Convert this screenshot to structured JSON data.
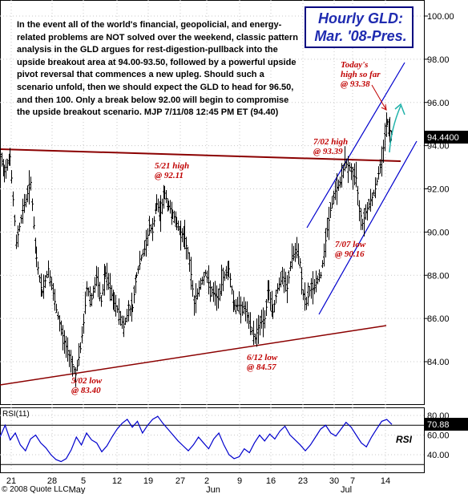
{
  "title": {
    "line1": "Hourly GLD:",
    "line2": "Mar. '08-Pres."
  },
  "commentary": "In the event all of the world's financial, geopolicial, and energy-related problems are NOT solved over the weekend, classic pattern analysis in the GLD argues for rest-digestion-pullback into the upside breakout area at 94.00-93.50, followed by a powerful upside pivot reversal that commences a new upleg. Should such a scenario unfold, then we should expect the GLD to head for 96.50, and then 100.  Only a break below 92.00 will begin to compromise the upside breakout scenario.  MJP  7/11/08  12:45 PM ET  (94.40)",
  "annotations": {
    "may21": {
      "line1": "5/21 high",
      "line2": "@ 92.11"
    },
    "may02": {
      "line1": "5/02 low",
      "line2": "@ 83.40"
    },
    "jun12": {
      "line1": "6/12 low",
      "line2": "@ 84.57"
    },
    "jul02": {
      "line1": "7/02 high",
      "line2": "@ 93.39"
    },
    "jul07": {
      "line1": "7/07 low",
      "line2": "@ 90.16"
    },
    "today": {
      "line1": "Today's",
      "line2": "high so far",
      "line3": "@ 93.38"
    }
  },
  "copyright": "© 2008 Quote LLC",
  "rsi_label": "RSI(11)",
  "rsi_side_label": "RSI",
  "last_price_tag": "94.4400",
  "rsi_value_tag": "70.88",
  "colors": {
    "price": "#000000",
    "trendline": "#8b0000",
    "channel": "#0000cd",
    "arrow_red": "#c00000",
    "arrow_teal": "#20b2aa",
    "tag_bg": "#000000",
    "rsi_line": "#0000cd"
  },
  "chart_data": [
    {
      "type": "ohlc",
      "title": "Hourly GLD: Mar. '08-Pres.",
      "xlabel": "",
      "ylabel": "",
      "x_ticks": [
        "21",
        "28",
        "5",
        "12",
        "19",
        "27",
        "2",
        "9",
        "16",
        "23",
        "30",
        "7",
        "14"
      ],
      "x_month_labels": [
        "May",
        "Jun",
        "Jul"
      ],
      "y_ticks": [
        84,
        86,
        88,
        90,
        92,
        94,
        96,
        98,
        100
      ],
      "ylim": [
        82.3,
        100.6
      ],
      "last_price": 94.44,
      "key_points": [
        {
          "date": "5/02",
          "label": "low",
          "value": 83.4
        },
        {
          "date": "5/21",
          "label": "high",
          "value": 92.11
        },
        {
          "date": "6/12",
          "label": "low",
          "value": 84.57
        },
        {
          "date": "7/02",
          "label": "high",
          "value": 93.39
        },
        {
          "date": "7/07",
          "label": "low",
          "value": 90.16
        },
        {
          "date": "Today",
          "label": "high so far",
          "value": 93.38
        }
      ],
      "path": [
        [
          0,
          93.6
        ],
        [
          5,
          92.8
        ],
        [
          12,
          93.5
        ],
        [
          20,
          89.5
        ],
        [
          28,
          91.0
        ],
        [
          38,
          92.3
        ],
        [
          45,
          88.8
        ],
        [
          52,
          87.2
        ],
        [
          60,
          88.3
        ],
        [
          70,
          86.4
        ],
        [
          80,
          84.9
        ],
        [
          88,
          84.1
        ],
        [
          94,
          83.4
        ],
        [
          100,
          84.6
        ],
        [
          104,
          85.8
        ],
        [
          108,
          87.4
        ],
        [
          114,
          86.9
        ],
        [
          120,
          87.9
        ],
        [
          126,
          86.8
        ],
        [
          131,
          88.1
        ],
        [
          137,
          87.4
        ],
        [
          142,
          86.7
        ],
        [
          148,
          86.3
        ],
        [
          154,
          85.6
        ],
        [
          160,
          86.4
        ],
        [
          165,
          86.5
        ],
        [
          170,
          88.0
        ],
        [
          176,
          88.8
        ],
        [
          182,
          89.4
        ],
        [
          186,
          90.3
        ],
        [
          190,
          90.0
        ],
        [
          195,
          91.3
        ],
        [
          200,
          90.9
        ],
        [
          205,
          91.8
        ],
        [
          210,
          91.2
        ],
        [
          215,
          90.9
        ],
        [
          220,
          90.4
        ],
        [
          225,
          90.0
        ],
        [
          230,
          89.7
        ],
        [
          236,
          88.7
        ],
        [
          242,
          86.7
        ],
        [
          250,
          87.6
        ],
        [
          256,
          88.1
        ],
        [
          264,
          87.2
        ],
        [
          272,
          86.9
        ],
        [
          278,
          87.9
        ],
        [
          285,
          88.3
        ],
        [
          292,
          86.6
        ],
        [
          300,
          86.6
        ],
        [
          306,
          86.4
        ],
        [
          312,
          85.6
        ],
        [
          318,
          85.1
        ],
        [
          324,
          85.8
        ],
        [
          330,
          86.0
        ],
        [
          335,
          87.3
        ],
        [
          340,
          86.3
        ],
        [
          346,
          87.4
        ],
        [
          352,
          87.9
        ],
        [
          358,
          87.4
        ],
        [
          364,
          88.9
        ],
        [
          370,
          89.1
        ],
        [
          374,
          88.6
        ],
        [
          378,
          87.1
        ],
        [
          382,
          86.7
        ],
        [
          386,
          87.3
        ],
        [
          390,
          87.4
        ],
        [
          396,
          87.8
        ],
        [
          400,
          88.0
        ],
        [
          404,
          89.1
        ],
        [
          408,
          90.1
        ],
        [
          412,
          91.0
        ],
        [
          418,
          91.9
        ],
        [
          424,
          92.3
        ],
        [
          430,
          93.2
        ],
        [
          436,
          93.0
        ],
        [
          440,
          92.6
        ],
        [
          444,
          92.5
        ],
        [
          448,
          91.1
        ],
        [
          452,
          90.4
        ],
        [
          456,
          90.9
        ],
        [
          460,
          91.3
        ],
        [
          464,
          91.6
        ],
        [
          468,
          92.0
        ],
        [
          472,
          92.7
        ],
        [
          476,
          93.3
        ],
        [
          480,
          94.5
        ],
        [
          483,
          95.1
        ],
        [
          486,
          94.7
        ],
        [
          489,
          94.44
        ]
      ],
      "series": [
        {
          "name": "GLD",
          "note": "hourly OHLC bars traced by path (x index, close)"
        }
      ],
      "overlays": [
        "horizontal resistance line ~94.0 to 93.3",
        "support trendline 83.3 to 85.7",
        "rising channel from 7/07 low"
      ]
    },
    {
      "type": "line",
      "title": "RSI(11)",
      "y_ticks": [
        40,
        60,
        80
      ],
      "ylim": [
        28,
        82
      ],
      "last_value": 70.88,
      "series": [
        {
          "name": "RSI(11)",
          "values": [
            58,
            70,
            55,
            62,
            50,
            44,
            56,
            60,
            52,
            47,
            40,
            35,
            33,
            36,
            45,
            58,
            50,
            62,
            55,
            52,
            43,
            49,
            58,
            66,
            72,
            76,
            68,
            74,
            62,
            70,
            76,
            79,
            72,
            66,
            60,
            54,
            49,
            44,
            50,
            58,
            52,
            46,
            56,
            62,
            50,
            40,
            36,
            38,
            46,
            42,
            52,
            60,
            54,
            61,
            56,
            64,
            69,
            60,
            55,
            50,
            44,
            50,
            58,
            66,
            70,
            62,
            59,
            66,
            73,
            68,
            60,
            52,
            48,
            58,
            66,
            74,
            76,
            70.88
          ]
        }
      ]
    }
  ]
}
